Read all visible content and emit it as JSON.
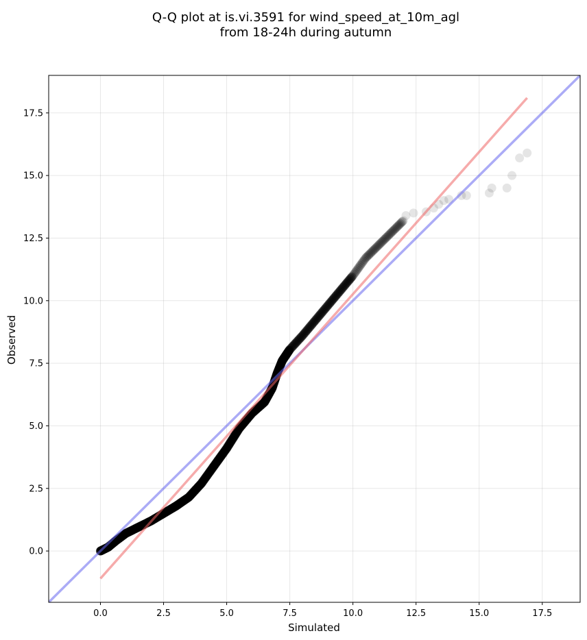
{
  "chart_data": {
    "type": "scatter",
    "title_lines": [
      "Q-Q plot at is.vi.3591 for wind_speed_at_10m_agl",
      "from 18-24h during autumn"
    ],
    "xlabel": "Simulated",
    "ylabel": "Observed",
    "xlim": [
      -2.05,
      19.0
    ],
    "ylim": [
      -2.05,
      19.0
    ],
    "x_ticks": [
      0.0,
      2.5,
      5.0,
      7.5,
      10.0,
      12.5,
      15.0,
      17.5
    ],
    "x_tick_labels": [
      "0.0",
      "2.5",
      "5.0",
      "7.5",
      "10.0",
      "12.5",
      "15.0",
      "17.5"
    ],
    "y_ticks": [
      0.0,
      2.5,
      5.0,
      7.5,
      10.0,
      12.5,
      15.0,
      17.5
    ],
    "y_tick_labels": [
      "0.0",
      "2.5",
      "5.0",
      "7.5",
      "10.0",
      "12.5",
      "15.0",
      "17.5"
    ],
    "grid": true,
    "colors": {
      "points": "#000000",
      "identity_line": "#6666ee",
      "fit_line": "#ee6666"
    },
    "identity_line": {
      "x": [
        -2.05,
        19.0
      ],
      "y": [
        -2.05,
        19.0
      ]
    },
    "fit_line": {
      "x": [
        0.0,
        16.9
      ],
      "y": [
        -1.1,
        18.1
      ]
    },
    "quantile_curve": {
      "x": [
        0.0,
        0.3,
        0.6,
        1.0,
        1.5,
        2.0,
        2.5,
        3.0,
        3.5,
        4.0,
        4.5,
        5.0,
        5.5,
        6.0,
        6.5,
        6.8,
        7.0,
        7.2,
        7.5,
        8.0,
        8.5,
        9.0,
        9.5,
        10.0,
        10.5,
        11.0,
        11.5,
        12.0
      ],
      "y": [
        0.0,
        0.15,
        0.4,
        0.7,
        0.95,
        1.2,
        1.5,
        1.8,
        2.15,
        2.7,
        3.4,
        4.1,
        4.9,
        5.5,
        5.95,
        6.5,
        7.1,
        7.6,
        8.05,
        8.6,
        9.2,
        9.8,
        10.4,
        11.0,
        11.7,
        12.2,
        12.7,
        13.2
      ]
    },
    "tail_points": {
      "x": [
        12.1,
        12.4,
        12.9,
        13.2,
        13.4,
        13.6,
        13.8,
        14.3,
        14.5,
        15.4,
        15.5,
        16.1,
        16.3,
        16.6,
        16.9
      ],
      "y": [
        13.4,
        13.5,
        13.55,
        13.7,
        13.85,
        14.0,
        14.05,
        14.2,
        14.2,
        14.3,
        14.5,
        14.5,
        15.0,
        15.7,
        15.9
      ]
    }
  }
}
